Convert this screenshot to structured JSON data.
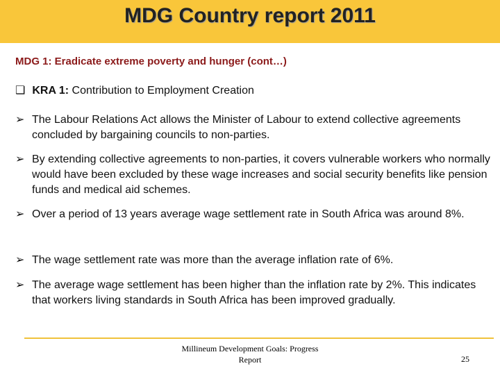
{
  "header": {
    "title": "MDG Country report 2011"
  },
  "subtitle": "MDG 1: Eradicate extreme poverty and hunger (cont…)",
  "kra": {
    "label": "KRA 1:",
    "text": "Contribution to Employment Creation"
  },
  "bullets": [
    "The Labour Relations Act allows the Minister of Labour to extend collective agreements concluded by bargaining councils to non-parties.",
    "By extending collective agreements to non-parties, it covers vulnerable workers who normally would have been excluded  by these wage increases and social security benefits like pension funds and medical aid schemes.",
    "Over a period of 13 years average wage settlement rate in South Africa was around 8%.",
    "The wage settlement rate was more than the average inflation rate of 6%.",
    "The average wage settlement has  been higher than the inflation rate by 2%. This indicates that workers living standards in South Africa has been improved gradually."
  ],
  "footer": {
    "text": "Millineum Development Goals: Progress Report",
    "page": "25"
  }
}
